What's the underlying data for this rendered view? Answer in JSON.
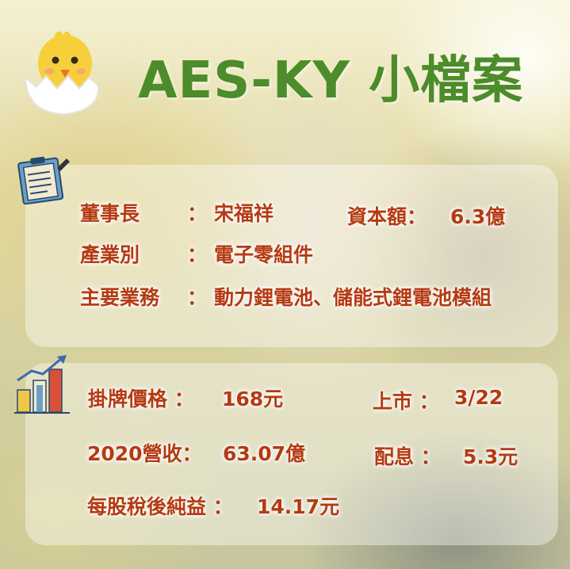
{
  "title": "AES-KY 小檔案",
  "company": {
    "chairman_label": "董事長",
    "chairman_colon": "：",
    "chairman_value": "宋福祥",
    "capital_label": "資本額：",
    "capital_value": "6.3億",
    "industry_label": "產業別",
    "industry_colon": "：",
    "industry_value": "電子零組件",
    "business_label": "主要業務",
    "business_colon": "：",
    "business_value": "動力鋰電池、儲能式鋰電池模組"
  },
  "listing": {
    "price_label": "掛牌價格 ：",
    "price_value": "168元",
    "listing_label": "上市 ：",
    "listing_value": "3/22",
    "revenue_label": "2020營收：",
    "revenue_value": "63.07億",
    "dividend_label": "配息 ：",
    "dividend_value": "5.3元",
    "eps_label": "每股稅後純益 ：",
    "eps_value": "14.17元"
  },
  "icons": [
    "chick-in-egg-icon",
    "clipboard-icon",
    "growth-chart-icon"
  ],
  "colors": {
    "title": "#4c8c2a",
    "text": "#b53a12"
  }
}
